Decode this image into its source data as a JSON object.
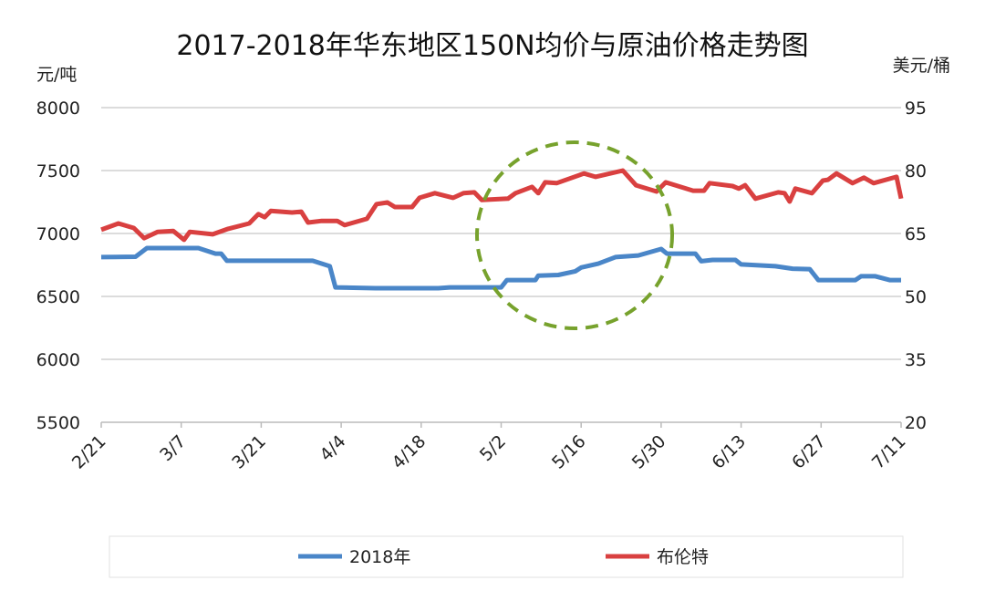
{
  "chart_data": {
    "type": "line",
    "title": "2017-2018年华东地区150N均价与原油价格走势图",
    "ylabel_left": "元/吨",
    "ylabel_right": "美元/桶",
    "ylim_left": [
      5500,
      8000
    ],
    "ylim_right": [
      20,
      95
    ],
    "yticks_left": [
      "5500",
      "6000",
      "6500",
      "7000",
      "7500",
      "8000"
    ],
    "yticks_right": [
      "20",
      "35",
      "50",
      "65",
      "80",
      "95"
    ],
    "x_range_days": [
      0,
      140
    ],
    "xticks": [
      "2/21",
      "3/7",
      "3/21",
      "4/4",
      "4/18",
      "5/2",
      "5/16",
      "5/30",
      "6/13",
      "6/27",
      "7/11"
    ],
    "grid": true,
    "legend_position": "bottom",
    "series": [
      {
        "name": "2018年",
        "axis": "left",
        "color": "#4a86c8",
        "points": [
          [
            0,
            6812
          ],
          [
            6,
            6815
          ],
          [
            8,
            6884
          ],
          [
            17,
            6884
          ],
          [
            20,
            6840
          ],
          [
            21,
            6840
          ],
          [
            22,
            6783
          ],
          [
            37,
            6783
          ],
          [
            40,
            6740
          ],
          [
            41,
            6572
          ],
          [
            48,
            6565
          ],
          [
            59,
            6565
          ],
          [
            61,
            6572
          ],
          [
            70,
            6572
          ],
          [
            71,
            6630
          ],
          [
            76,
            6630
          ],
          [
            76.5,
            6665
          ],
          [
            80,
            6670
          ],
          [
            83,
            6700
          ],
          [
            84,
            6730
          ],
          [
            87,
            6760
          ],
          [
            90,
            6812
          ],
          [
            94,
            6825
          ],
          [
            98,
            6877
          ],
          [
            99,
            6840
          ],
          [
            104,
            6840
          ],
          [
            105,
            6780
          ],
          [
            107,
            6790
          ],
          [
            111,
            6790
          ],
          [
            112,
            6754
          ],
          [
            118,
            6740
          ],
          [
            121,
            6720
          ],
          [
            124,
            6717
          ],
          [
            125.5,
            6630
          ],
          [
            132,
            6630
          ],
          [
            133,
            6660
          ],
          [
            135.5,
            6660
          ],
          [
            138,
            6630
          ],
          [
            140,
            6630
          ]
        ]
      },
      {
        "name": "布伦特",
        "axis": "right",
        "color": "#d94040",
        "points": [
          [
            0,
            65.9
          ],
          [
            3,
            67.4
          ],
          [
            5.7,
            66.3
          ],
          [
            7.5,
            63.9
          ],
          [
            9.9,
            65.4
          ],
          [
            12.6,
            65.6
          ],
          [
            14.5,
            63.5
          ],
          [
            15.5,
            65.4
          ],
          [
            19.5,
            64.8
          ],
          [
            22.2,
            66.1
          ],
          [
            25.9,
            67.4
          ],
          [
            27.5,
            69.6
          ],
          [
            28.6,
            68.9
          ],
          [
            29.7,
            70.4
          ],
          [
            33.4,
            70.0
          ],
          [
            35,
            70.2
          ],
          [
            36.2,
            67.6
          ],
          [
            38.6,
            68.0
          ],
          [
            41.3,
            68.0
          ],
          [
            42.6,
            67.0
          ],
          [
            46.5,
            68.5
          ],
          [
            48.2,
            72.0
          ],
          [
            50.1,
            72.4
          ],
          [
            51.4,
            71.3
          ],
          [
            54.4,
            71.3
          ],
          [
            55.7,
            73.5
          ],
          [
            58.4,
            74.6
          ],
          [
            61.6,
            73.5
          ],
          [
            63.4,
            74.6
          ],
          [
            65.3,
            74.8
          ],
          [
            66.6,
            73.0
          ],
          [
            71.2,
            73.3
          ],
          [
            72.5,
            74.6
          ],
          [
            75.4,
            76.1
          ],
          [
            76.5,
            74.6
          ],
          [
            77.7,
            77.2
          ],
          [
            79.7,
            77.0
          ],
          [
            84.5,
            79.3
          ],
          [
            86.5,
            78.5
          ],
          [
            91.3,
            80.0
          ],
          [
            93.6,
            76.5
          ],
          [
            97.2,
            75.0
          ],
          [
            98.8,
            77.2
          ],
          [
            103.6,
            75.2
          ],
          [
            105.5,
            75.2
          ],
          [
            106.5,
            77.0
          ],
          [
            110.5,
            76.3
          ],
          [
            111.6,
            75.7
          ],
          [
            112.7,
            76.5
          ],
          [
            114.5,
            73.3
          ],
          [
            118.5,
            74.8
          ],
          [
            119.6,
            74.6
          ],
          [
            120.5,
            72.6
          ],
          [
            121.5,
            75.7
          ],
          [
            124.4,
            74.6
          ],
          [
            126.3,
            77.6
          ],
          [
            127.2,
            77.8
          ],
          [
            128.7,
            79.3
          ],
          [
            131.5,
            77.0
          ],
          [
            133.5,
            78.3
          ],
          [
            135.2,
            77.0
          ],
          [
            139.2,
            78.5
          ],
          [
            140,
            73.3
          ]
        ]
      }
    ],
    "colors": {
      "grid": "#d0d0d0",
      "annotation": "#77a22d"
    }
  }
}
